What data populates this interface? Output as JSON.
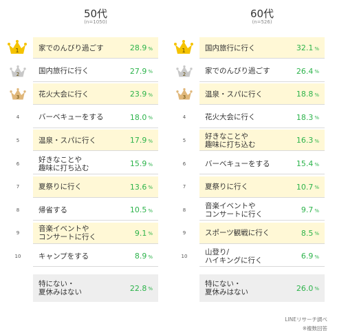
{
  "chart_data": [
    {
      "type": "table",
      "title": "50代",
      "sample": "(n=1050)",
      "rows": [
        {
          "rank": "1",
          "label": "家でのんびり過ごす",
          "value": 28.9,
          "value_text": "28.9",
          "unit": "%"
        },
        {
          "rank": "2",
          "label": "国内旅行に行く",
          "value": 27.9,
          "value_text": "27.9",
          "unit": "%"
        },
        {
          "rank": "3",
          "label": "花火大会に行く",
          "value": 23.9,
          "value_text": "23.9",
          "unit": "%"
        },
        {
          "rank": "4",
          "label": "バーベキューをする",
          "value": 18.0,
          "value_text": "18.0",
          "unit": "%"
        },
        {
          "rank": "5",
          "label": "温泉・スパに行く",
          "value": 17.9,
          "value_text": "17.9",
          "unit": "%"
        },
        {
          "rank": "6",
          "label": "好きなことや\n趣味に打ち込む",
          "value": 15.9,
          "value_text": "15.9",
          "unit": "%"
        },
        {
          "rank": "7",
          "label": "夏祭りに行く",
          "value": 13.6,
          "value_text": "13.6",
          "unit": "%"
        },
        {
          "rank": "8",
          "label": "帰省する",
          "value": 10.5,
          "value_text": "10.5",
          "unit": "%"
        },
        {
          "rank": "9",
          "label": "音楽イベントや\nコンサートに行く",
          "value": 9.1,
          "value_text": "9.1",
          "unit": "%"
        },
        {
          "rank": "10",
          "label": "キャンプをする",
          "value": 8.9,
          "value_text": "8.9",
          "unit": "%"
        }
      ],
      "other": {
        "label": "特にない・\n夏休みはない",
        "value": 22.8,
        "value_text": "22.8",
        "unit": "%"
      }
    },
    {
      "type": "table",
      "title": "60代",
      "sample": "(n=526)",
      "rows": [
        {
          "rank": "1",
          "label": "国内旅行に行く",
          "value": 32.1,
          "value_text": "32.1",
          "unit": "%"
        },
        {
          "rank": "2",
          "label": "家でのんびり過ごす",
          "value": 26.4,
          "value_text": "26.4",
          "unit": "%"
        },
        {
          "rank": "3",
          "label": "温泉・スパに行く",
          "value": 18.8,
          "value_text": "18.8",
          "unit": "%"
        },
        {
          "rank": "4",
          "label": "花火大会に行く",
          "value": 18.3,
          "value_text": "18.3",
          "unit": "%"
        },
        {
          "rank": "5",
          "label": "好きなことや\n趣味に打ち込む",
          "value": 16.3,
          "value_text": "16.3",
          "unit": "%"
        },
        {
          "rank": "6",
          "label": "バーベキューをする",
          "value": 15.4,
          "value_text": "15.4",
          "unit": "%"
        },
        {
          "rank": "7",
          "label": "夏祭りに行く",
          "value": 10.7,
          "value_text": "10.7",
          "unit": "%"
        },
        {
          "rank": "8",
          "label": "音楽イベントや\nコンサートに行く",
          "value": 9.7,
          "value_text": "9.7",
          "unit": "%"
        },
        {
          "rank": "9",
          "label": "スポーツ観戦に行く",
          "value": 8.5,
          "value_text": "8.5",
          "unit": "%"
        },
        {
          "rank": "10",
          "label": "山登り/\nハイキングに行く",
          "value": 6.9,
          "value_text": "6.9",
          "unit": "%"
        }
      ],
      "other": {
        "label": "特にない・\n夏休みはない",
        "value": 26.0,
        "value_text": "26.0",
        "unit": "%"
      }
    }
  ],
  "footer": {
    "source": "LINEリサーチ調べ",
    "note": "※複数回答"
  },
  "colors": {
    "value_text": "#2cb34a",
    "highlight_row": "#fff8d6",
    "other_row": "#eeeeee",
    "crown_gold": "#f5c300",
    "crown_silver": "#c8c8c8",
    "crown_bronze": "#e0b77a"
  },
  "icons": {
    "rank1": "gold-crown-icon",
    "rank2": "silver-crown-icon",
    "rank3": "bronze-crown-icon"
  }
}
